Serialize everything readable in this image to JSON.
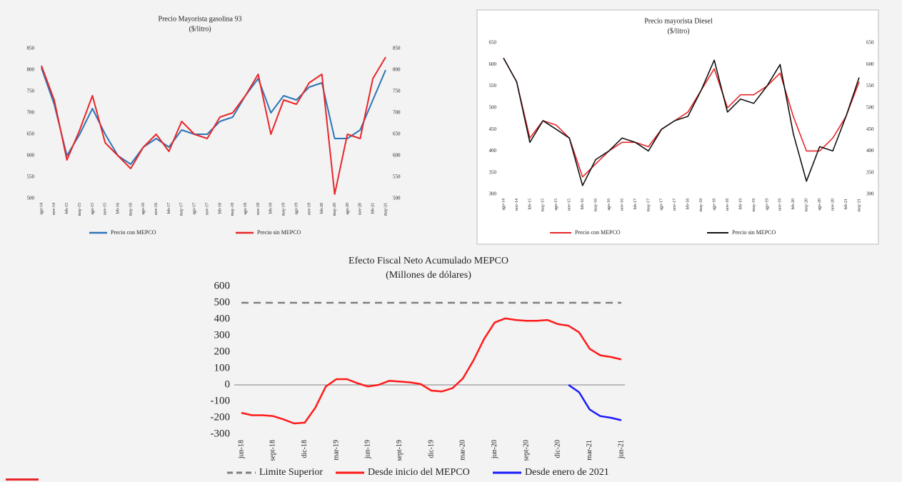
{
  "chart_data": [
    {
      "type": "line",
      "title": "Precio Mayorista gasolina 93",
      "subtitle": "($/litro)",
      "categories": [
        "ago-14",
        "nov-14",
        "feb-15",
        "may-15",
        "ago-15",
        "nov-15",
        "feb-16",
        "may-16",
        "ago-16",
        "nov-16",
        "feb-17",
        "may-17",
        "ago-17",
        "nov-17",
        "feb-18",
        "may-18",
        "ago-18",
        "nov-18",
        "feb-19",
        "may-19",
        "ago-19",
        "nov-19",
        "feb-20",
        "may-20",
        "ago-20",
        "nov-20",
        "feb-21",
        "may-21"
      ],
      "series": [
        {
          "name": "Precio con MEPCO",
          "color": "#2e75b6",
          "values": [
            805,
            720,
            600,
            650,
            710,
            650,
            600,
            580,
            620,
            640,
            620,
            660,
            650,
            650,
            680,
            690,
            740,
            780,
            700,
            740,
            730,
            760,
            770,
            640,
            640,
            660,
            730,
            800
          ]
        },
        {
          "name": "Precio sin MEPCO",
          "color": "#e8262a",
          "values": [
            810,
            730,
            590,
            660,
            740,
            630,
            600,
            570,
            620,
            650,
            610,
            680,
            650,
            640,
            690,
            700,
            740,
            790,
            650,
            730,
            720,
            770,
            790,
            510,
            650,
            640,
            780,
            830
          ]
        }
      ],
      "ylim": [
        500,
        850
      ],
      "yticks": [
        500,
        550,
        600,
        650,
        700,
        750,
        800,
        850
      ],
      "y2lim": [
        500,
        850
      ],
      "y2ticks": [
        500,
        550,
        600,
        650,
        700,
        750,
        800,
        850
      ],
      "grid": false,
      "legend": "bottom"
    },
    {
      "type": "line",
      "title": "Precio mayorista Diesel",
      "subtitle": "($/litro)",
      "categories": [
        "ago-14",
        "nov-14",
        "feb-15",
        "may-15",
        "ago-15",
        "nov-15",
        "feb-16",
        "may-16",
        "ago-16",
        "nov-16",
        "feb-17",
        "may-17",
        "ago-17",
        "nov-17",
        "feb-18",
        "may-18",
        "ago-18",
        "nov-18",
        "feb-19",
        "may-19",
        "ago-19",
        "nov-19",
        "feb-20",
        "may-20",
        "ago-20",
        "nov-20",
        "feb-21",
        "may-21"
      ],
      "series": [
        {
          "name": "Precio con MEPCO",
          "color": "#e8262a",
          "values": [
            615,
            560,
            430,
            470,
            460,
            430,
            340,
            370,
            400,
            420,
            420,
            410,
            450,
            470,
            490,
            540,
            590,
            500,
            530,
            530,
            550,
            580,
            480,
            400,
            400,
            430,
            480,
            560
          ]
        },
        {
          "name": "Precio sin MEPCO",
          "color": "#111111",
          "values": [
            615,
            560,
            420,
            470,
            450,
            430,
            320,
            380,
            400,
            430,
            420,
            400,
            450,
            470,
            480,
            540,
            610,
            490,
            520,
            510,
            550,
            600,
            440,
            330,
            410,
            400,
            480,
            570
          ]
        }
      ],
      "ylim": [
        300,
        650
      ],
      "yticks": [
        300,
        350,
        400,
        450,
        500,
        550,
        600,
        650
      ],
      "y2lim": [
        300,
        650
      ],
      "y2ticks": [
        300,
        350,
        400,
        450,
        500,
        550,
        600,
        650
      ],
      "grid": false,
      "legend": "bottom"
    },
    {
      "type": "line",
      "title": "Efecto Fiscal Neto Acumulado MEPCO",
      "subtitle": "(Millones de dólares)",
      "categories": [
        "jun-18",
        null,
        null,
        "sept-18",
        null,
        null,
        "dic-18",
        null,
        null,
        "mar-19",
        null,
        null,
        "jun-19",
        null,
        null,
        "sept-19",
        null,
        null,
        "dic-19",
        null,
        null,
        "mar-20",
        null,
        null,
        "jun-20",
        null,
        null,
        "sept-20",
        null,
        null,
        "dic-20",
        null,
        null,
        "mar-21",
        null,
        null,
        "jun-21"
      ],
      "series": [
        {
          "name": "Limite Superior",
          "color": "#7f7f7f",
          "style": "dashed",
          "values": [
            500,
            500,
            500,
            500,
            500,
            500,
            500,
            500,
            500,
            500,
            500,
            500,
            500,
            500,
            500,
            500,
            500,
            500,
            500,
            500,
            500,
            500,
            500,
            500,
            500,
            500,
            500,
            500,
            500,
            500,
            500,
            500,
            500,
            500,
            500,
            500,
            500
          ]
        },
        {
          "name": "Desde inicio del MEPCO",
          "color": "#ff1a1a",
          "values": [
            -170,
            -185,
            -185,
            -190,
            -210,
            -235,
            -230,
            -140,
            -10,
            35,
            35,
            10,
            -10,
            0,
            25,
            20,
            15,
            5,
            -35,
            -40,
            -20,
            40,
            150,
            280,
            380,
            405,
            395,
            390,
            390,
            395,
            370,
            360,
            320,
            220,
            180,
            170,
            155
          ]
        },
        {
          "name": "Desde enero de 2021",
          "color": "#1a1aff",
          "values": [
            null,
            null,
            null,
            null,
            null,
            null,
            null,
            null,
            null,
            null,
            null,
            null,
            null,
            null,
            null,
            null,
            null,
            null,
            null,
            null,
            null,
            null,
            null,
            null,
            null,
            null,
            null,
            null,
            null,
            null,
            null,
            0,
            -45,
            -150,
            -190,
            -200,
            -215
          ]
        }
      ],
      "ylim": [
        -300,
        600
      ],
      "yticks": [
        -300,
        -200,
        -100,
        0,
        100,
        200,
        300,
        400,
        500,
        600
      ],
      "grid": false,
      "legend": "bottom"
    }
  ]
}
